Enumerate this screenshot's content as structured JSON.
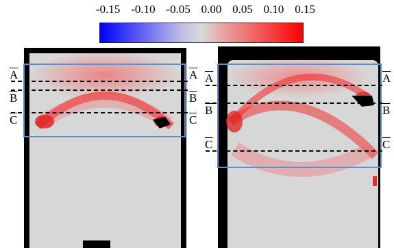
{
  "colorbar": {
    "ticks": [
      "-0.15",
      "-0.10",
      "-0.05",
      "0.00",
      "0.05",
      "0.10",
      "0.15"
    ],
    "colors": {
      "min": "#0000ff",
      "mid": "#d9d9d9",
      "max": "#ff0000"
    }
  },
  "panels": [
    {
      "section_labels": {
        "A_left": "A",
        "A_right": "A",
        "B_left": "B",
        "B_right": "B",
        "C_left": "C",
        "C_right": "C"
      }
    },
    {
      "section_labels": {
        "A_left": "A",
        "A_right": "A",
        "B_left": "B",
        "B_right": "B",
        "C_left": "C",
        "C_right": "C"
      }
    }
  ],
  "colors": {
    "roi_box": "#5b8fd6",
    "background": "#000000"
  }
}
